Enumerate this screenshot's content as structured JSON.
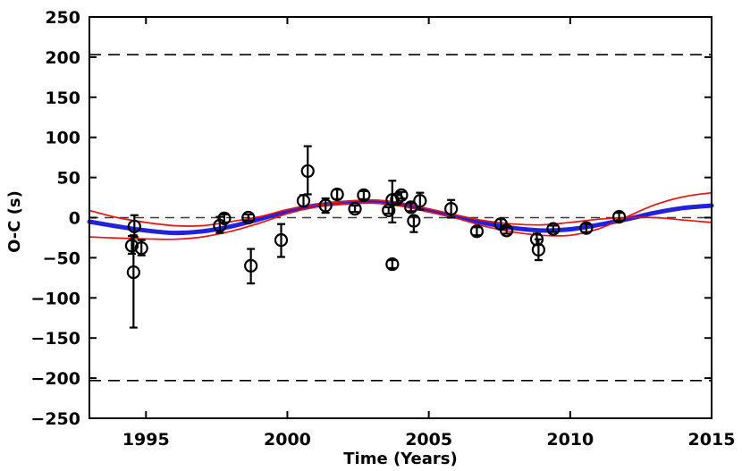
{
  "figure": {
    "xlabel": "Time (Years)",
    "ylabel": "O-C (s)"
  },
  "chart_data": {
    "type": "scatter",
    "title": "",
    "xlabel": "Time (Years)",
    "ylabel": "O-C (s)",
    "xlim": [
      1993,
      2015
    ],
    "ylim": [
      -250,
      250
    ],
    "xticks": [
      1995,
      2000,
      2005,
      2010,
      2015
    ],
    "yticks": [
      250,
      200,
      150,
      100,
      50,
      0,
      -50,
      -100,
      -150,
      -200,
      -250
    ],
    "grid": false,
    "legend": "none",
    "colors": {
      "fit_curve": "#2222dd",
      "error_curves": "#e81212",
      "markers": "#000000",
      "reference_dashed": "#000000",
      "zero_line": "#3c3c3c"
    },
    "reference_lines": [
      {
        "y": 203,
        "style": "dashed-black"
      },
      {
        "y": 0,
        "style": "dashed-gray"
      },
      {
        "y": -203,
        "style": "dashed-black"
      }
    ],
    "points": [
      {
        "t": 1994.5,
        "v": -35,
        "eu": 12,
        "ed": 10
      },
      {
        "t": 1994.56,
        "v": -68,
        "eu": 46,
        "ed": 69
      },
      {
        "t": 1994.59,
        "v": -11,
        "eu": 14,
        "ed": 13
      },
      {
        "t": 1994.84,
        "v": -38,
        "eu": 10,
        "ed": 9
      },
      {
        "t": 1997.61,
        "v": -10,
        "eu": 11,
        "ed": 9
      },
      {
        "t": 1997.77,
        "v": -1,
        "eu": 5,
        "ed": 5
      },
      {
        "t": 1998.62,
        "v": 0,
        "eu": 4,
        "ed": 4
      },
      {
        "t": 1998.71,
        "v": -60,
        "eu": 21,
        "ed": 22
      },
      {
        "t": 1999.78,
        "v": -28,
        "eu": 20,
        "ed": 21
      },
      {
        "t": 2000.57,
        "v": 21,
        "eu": 7,
        "ed": 7
      },
      {
        "t": 2000.72,
        "v": 58,
        "eu": 31,
        "ed": 29
      },
      {
        "t": 2001.35,
        "v": 15,
        "eu": 9,
        "ed": 9
      },
      {
        "t": 2001.76,
        "v": 29,
        "eu": 6,
        "ed": 6
      },
      {
        "t": 2002.39,
        "v": 11,
        "eu": 4,
        "ed": 4
      },
      {
        "t": 2002.7,
        "v": 28,
        "eu": 5,
        "ed": 5
      },
      {
        "t": 2003.58,
        "v": 9,
        "eu": 4,
        "ed": 4
      },
      {
        "t": 2003.71,
        "v": 22,
        "eu": 24,
        "ed": 28
      },
      {
        "t": 2003.71,
        "v": -58,
        "eu": 5,
        "ed": 5
      },
      {
        "t": 2003.87,
        "v": 23,
        "eu": 5,
        "ed": 5
      },
      {
        "t": 2004.03,
        "v": 28,
        "eu": 4,
        "ed": 4
      },
      {
        "t": 2004.37,
        "v": 13,
        "eu": 5,
        "ed": 5
      },
      {
        "t": 2004.47,
        "v": -4,
        "eu": 6,
        "ed": 14
      },
      {
        "t": 2004.69,
        "v": 21,
        "eu": 10,
        "ed": 11
      },
      {
        "t": 2005.79,
        "v": 11,
        "eu": 11,
        "ed": 11
      },
      {
        "t": 2006.7,
        "v": -17,
        "eu": 5,
        "ed": 5
      },
      {
        "t": 2007.55,
        "v": -8,
        "eu": 6,
        "ed": 6
      },
      {
        "t": 2007.75,
        "v": -16,
        "eu": 4,
        "ed": 4
      },
      {
        "t": 2008.82,
        "v": -27,
        "eu": 7,
        "ed": 7
      },
      {
        "t": 2008.88,
        "v": -40,
        "eu": 13,
        "ed": 13
      },
      {
        "t": 2009.4,
        "v": -14,
        "eu": 4,
        "ed": 4
      },
      {
        "t": 2010.57,
        "v": -13,
        "eu": 5,
        "ed": 5
      },
      {
        "t": 2011.73,
        "v": 1,
        "eu": 5,
        "ed": 5
      }
    ],
    "curves": [
      {
        "name": "best-fit-sinusoid",
        "color": "#2222dd",
        "width": 5,
        "points": [
          [
            1993.0,
            -5
          ],
          [
            1994,
            -11
          ],
          [
            1995,
            -16
          ],
          [
            1996,
            -19
          ],
          [
            1997,
            -17
          ],
          [
            1998,
            -11
          ],
          [
            1999,
            -2
          ],
          [
            2000,
            8
          ],
          [
            2001,
            15
          ],
          [
            2002,
            18.5
          ],
          [
            2003,
            20
          ],
          [
            2004,
            16.5
          ],
          [
            2005,
            9
          ],
          [
            2006,
            1
          ],
          [
            2007,
            -7
          ],
          [
            2008,
            -13
          ],
          [
            2009,
            -16
          ],
          [
            2010,
            -14.5
          ],
          [
            2011,
            -9
          ],
          [
            2012,
            -2
          ],
          [
            2013,
            6
          ],
          [
            2014,
            12
          ],
          [
            2015,
            15
          ]
        ]
      },
      {
        "name": "error-curve-a",
        "color": "#e81212",
        "width": 1.7,
        "points": [
          [
            1993,
            9
          ],
          [
            1994,
            0
          ],
          [
            1995,
            -6
          ],
          [
            1996,
            -10
          ],
          [
            1997,
            -10
          ],
          [
            1998,
            -5
          ],
          [
            1999,
            1
          ],
          [
            2000,
            10
          ],
          [
            2001,
            16
          ],
          [
            2002,
            20
          ],
          [
            2003,
            22
          ],
          [
            2004,
            18.5
          ],
          [
            2005,
            11
          ],
          [
            2006,
            3
          ],
          [
            2007,
            -4
          ],
          [
            2008,
            -8
          ],
          [
            2009,
            -9
          ],
          [
            2010,
            -6
          ],
          [
            2011,
            -2
          ],
          [
            2012,
            0
          ],
          [
            2013,
            0
          ],
          [
            2014,
            -3
          ],
          [
            2015,
            -6
          ]
        ]
      },
      {
        "name": "error-curve-b",
        "color": "#e81212",
        "width": 1.7,
        "points": [
          [
            1993,
            -24
          ],
          [
            1994,
            -25.5
          ],
          [
            1995,
            -26.5
          ],
          [
            1996,
            -27
          ],
          [
            1997,
            -24
          ],
          [
            1998,
            -17
          ],
          [
            1999,
            -7
          ],
          [
            2000,
            5
          ],
          [
            2001,
            13
          ],
          [
            2002,
            17
          ],
          [
            2003,
            18
          ],
          [
            2004,
            14.5
          ],
          [
            2005,
            7
          ],
          [
            2006,
            -1
          ],
          [
            2007,
            -11
          ],
          [
            2008,
            -18
          ],
          [
            2009,
            -22
          ],
          [
            2010,
            -22
          ],
          [
            2011,
            -14
          ],
          [
            2012,
            1
          ],
          [
            2013,
            16
          ],
          [
            2014,
            26
          ],
          [
            2015,
            31
          ]
        ]
      }
    ],
    "marker": {
      "shape": "open-circle",
      "radius": 6.5,
      "stroke_width": 2.2
    }
  }
}
